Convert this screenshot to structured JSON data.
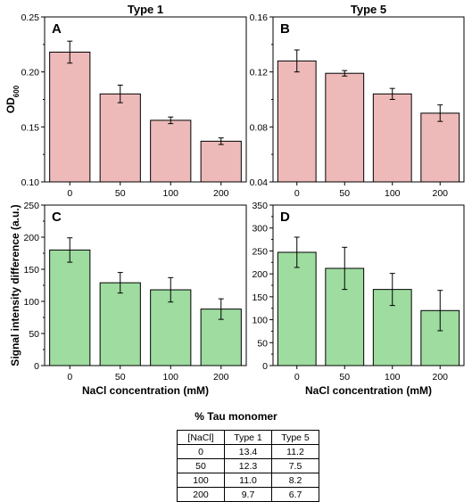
{
  "chart_data": [
    {
      "type": "bar",
      "panel": "A",
      "title": "Type 1",
      "ylabel": "OD600",
      "ylabel_main": "OD",
      "ylabel_sub": "600",
      "categories": [
        "0",
        "50",
        "100",
        "200"
      ],
      "values": [
        0.218,
        0.18,
        0.156,
        0.137
      ],
      "errors": [
        0.01,
        0.008,
        0.003,
        0.003
      ],
      "ylim": [
        0.1,
        0.25
      ],
      "yticks": [
        "0.10",
        "0.15",
        "0.20",
        "0.25"
      ],
      "color": "#eebab9"
    },
    {
      "type": "bar",
      "panel": "B",
      "title": "Type 5",
      "categories": [
        "0",
        "50",
        "100",
        "200"
      ],
      "values": [
        0.128,
        0.119,
        0.104,
        0.09
      ],
      "errors": [
        0.008,
        0.002,
        0.004,
        0.006
      ],
      "ylim": [
        0.04,
        0.16
      ],
      "yticks": [
        "0.04",
        "0.08",
        "0.12",
        "0.16"
      ],
      "color": "#eebab9"
    },
    {
      "type": "bar",
      "panel": "C",
      "xlabel": "NaCl concentration (mM)",
      "categories": [
        "0",
        "50",
        "100",
        "200"
      ],
      "values": [
        180,
        129,
        118,
        88
      ],
      "errors": [
        19,
        16,
        19,
        16
      ],
      "ylim": [
        0,
        250
      ],
      "yticks": [
        "0",
        "50",
        "100",
        "150",
        "200",
        "250"
      ],
      "color": "#9edc9f"
    },
    {
      "type": "bar",
      "panel": "D",
      "xlabel": "NaCl concentration (mM)",
      "categories": [
        "0",
        "50",
        "100",
        "200"
      ],
      "values": [
        247,
        212,
        166,
        120
      ],
      "errors": [
        33,
        46,
        35,
        44
      ],
      "ylim": [
        0,
        350
      ],
      "yticks": [
        "0",
        "50",
        "100",
        "150",
        "200",
        "250",
        "300",
        "350"
      ],
      "color": "#9edc9f"
    }
  ],
  "shared_ylabel_bottom": "Signal intensity difference (a.u.)",
  "table": {
    "title": "% Tau monomer",
    "headers": [
      "[NaCl]",
      "Type 1",
      "Type 5"
    ],
    "rows": [
      [
        "0",
        "13.4",
        "11.2"
      ],
      [
        "50",
        "12.3",
        "7.5"
      ],
      [
        "100",
        "11.0",
        "8.2"
      ],
      [
        "200",
        "9.7",
        "6.7"
      ]
    ]
  }
}
